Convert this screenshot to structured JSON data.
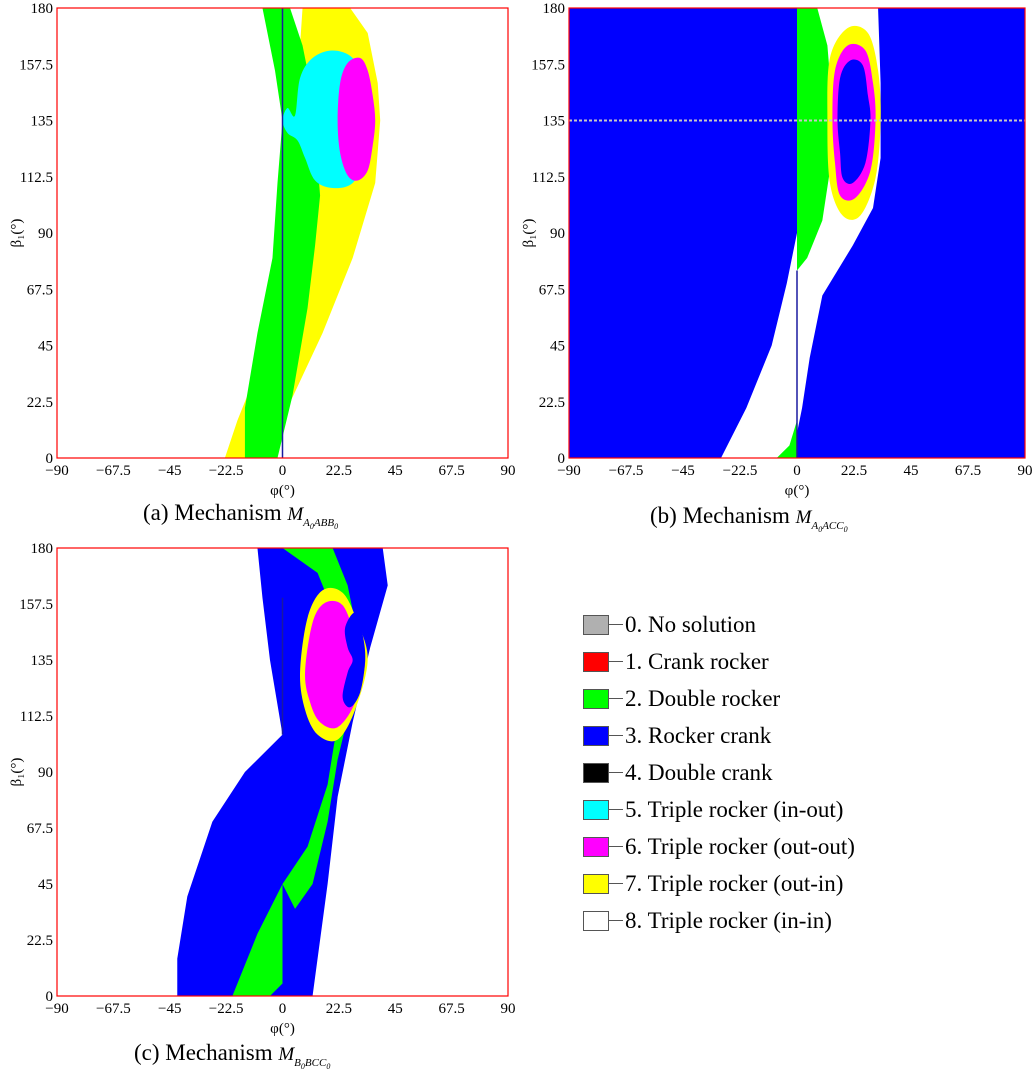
{
  "colors": {
    "no_solution": "#b0b0b0",
    "crank_rocker": "#ff0000",
    "double_rocker": "#00ff00",
    "rocker_crank": "#0000ff",
    "double_crank": "#000000",
    "triple_in_out": "#00ffff",
    "triple_out_out": "#ff00ff",
    "triple_out_in": "#ffff00",
    "triple_in_in": "#ffffff",
    "frame": "#ff0000",
    "center_line": "#1a1aa0"
  },
  "legend": [
    {
      "label": "0. No solution",
      "color": "#b0b0b0"
    },
    {
      "label": "1. Crank rocker",
      "color": "#ff0000"
    },
    {
      "label": "2. Double rocker",
      "color": "#00ff00"
    },
    {
      "label": "3. Rocker crank",
      "color": "#0000ff"
    },
    {
      "label": "4. Double crank",
      "color": "#000000"
    },
    {
      "label": "5. Triple rocker (in-out)",
      "color": "#00ffff"
    },
    {
      "label": "6. Triple rocker (out-out)",
      "color": "#ff00ff"
    },
    {
      "label": "7. Triple rocker (out-in)",
      "color": "#ffff00"
    },
    {
      "label": "8. Triple rocker (in-in)",
      "color": "#ffffff"
    }
  ],
  "chart_data": [
    {
      "type": "heatmap",
      "id": "a",
      "caption_prefix": "(a) Mechanism",
      "caption_symbol": "M",
      "caption_sub_parts": [
        "A",
        "0",
        "ABB",
        "0"
      ],
      "xlabel": "φ(°)",
      "ylabel": "β₁(°)",
      "xlim": [
        -90,
        90
      ],
      "ylim": [
        0,
        180
      ],
      "xticks": [
        "−90",
        "−67.5",
        "−45",
        "−22.5",
        "0",
        "22.5",
        "45",
        "67.5",
        "90"
      ],
      "yticks": [
        "0",
        "22.5",
        "45",
        "67.5",
        "90",
        "112.5",
        "135",
        "157.5",
        "180"
      ],
      "background_region": "triple_in_in",
      "regions": [
        {
          "class": "triple_out_in",
          "polygon": [
            [
              8,
              180
            ],
            [
              27,
              180
            ],
            [
              34,
              170
            ],
            [
              38,
              150
            ],
            [
              39,
              135
            ],
            [
              37,
              110
            ],
            [
              28,
              80
            ],
            [
              16,
              50
            ],
            [
              2,
              20
            ],
            [
              -12,
              0
            ],
            [
              -23,
              0
            ],
            [
              -18,
              15
            ],
            [
              -8,
              40
            ],
            [
              5,
              75
            ],
            [
              10,
              100
            ],
            [
              8,
              120
            ],
            [
              6,
              150
            ]
          ]
        },
        {
          "class": "double_rocker",
          "polygon": [
            [
              -8,
              180
            ],
            [
              3,
              180
            ],
            [
              8,
              165
            ],
            [
              12,
              145
            ],
            [
              13,
              130
            ],
            [
              15,
              105
            ],
            [
              13,
              85
            ],
            [
              10,
              60
            ],
            [
              4,
              25
            ],
            [
              -2,
              0
            ],
            [
              -15,
              0
            ],
            [
              -15,
              20
            ],
            [
              -10,
              50
            ],
            [
              -4,
              80
            ],
            [
              -2,
              110
            ],
            [
              0,
              135
            ],
            [
              -3,
              155
            ]
          ]
        },
        {
          "class": "triple_in_out",
          "points": [
            [
              5,
              137
            ],
            [
              7,
              152
            ],
            [
              12,
              160
            ],
            [
              20,
              163
            ],
            [
              28,
              160
            ],
            [
              33,
              150
            ],
            [
              35,
              135
            ],
            [
              33,
              120
            ],
            [
              28,
              110
            ],
            [
              20,
              108
            ],
            [
              13,
              111
            ],
            [
              9,
              120
            ],
            [
              6,
              127
            ],
            [
              2,
              130
            ],
            [
              0,
              135
            ],
            [
              2,
              140
            ]
          ]
        },
        {
          "class": "triple_out_out",
          "points": [
            [
              22,
              135
            ],
            [
              23,
              150
            ],
            [
              26,
              158
            ],
            [
              31,
              160
            ],
            [
              34,
              155
            ],
            [
              36,
              145
            ],
            [
              37,
              135
            ],
            [
              36,
              125
            ],
            [
              34,
              115
            ],
            [
              30,
              111
            ],
            [
              26,
              113
            ],
            [
              23,
              122
            ]
          ]
        }
      ],
      "center_line_x": 0
    },
    {
      "type": "heatmap",
      "id": "b",
      "caption_prefix": "(b) Mechanism",
      "caption_symbol": "M",
      "caption_sub_parts": [
        "A",
        "0",
        "ACC",
        "0"
      ],
      "xlabel": "φ(°)",
      "ylabel": "β₁(°)",
      "xlim": [
        -90,
        90
      ],
      "ylim": [
        0,
        180
      ],
      "xticks": [
        "−90",
        "−67.5",
        "−45",
        "−22.5",
        "0",
        "22.5",
        "45",
        "67.5",
        "90"
      ],
      "yticks": [
        "0",
        "22.5",
        "45",
        "67.5",
        "90",
        "112.5",
        "135",
        "157.5",
        "180"
      ],
      "background_region": "rocker_crank",
      "regions": [
        {
          "class": "triple_in_in",
          "polygon": [
            [
              0,
              180
            ],
            [
              32,
              180
            ],
            [
              33,
              150
            ],
            [
              33,
              120
            ],
            [
              30,
              100
            ],
            [
              22,
              85
            ],
            [
              10,
              65
            ],
            [
              5,
              40
            ],
            [
              2,
              20
            ],
            [
              -2,
              0
            ],
            [
              -30,
              0
            ],
            [
              -20,
              20
            ],
            [
              -10,
              45
            ],
            [
              -4,
              70
            ],
            [
              0,
              90
            ]
          ]
        },
        {
          "class": "double_rocker",
          "polygon": [
            [
              0,
              180
            ],
            [
              8,
              180
            ],
            [
              12,
              165
            ],
            [
              14,
              140
            ],
            [
              13,
              115
            ],
            [
              10,
              95
            ],
            [
              4,
              80
            ],
            [
              0,
              75
            ]
          ]
        },
        {
          "class": "double_rocker",
          "polygon": [
            [
              -8,
              0
            ],
            [
              0,
              0
            ],
            [
              0,
              15
            ],
            [
              -3,
              5
            ]
          ]
        },
        {
          "class": "triple_out_in",
          "points": [
            [
              12,
              135
            ],
            [
              13,
              160
            ],
            [
              20,
              172
            ],
            [
              28,
              170
            ],
            [
              32,
              155
            ],
            [
              33,
              135
            ],
            [
              31,
              112
            ],
            [
              25,
              97
            ],
            [
              18,
              97
            ],
            [
              13,
              110
            ]
          ]
        },
        {
          "class": "triple_out_out",
          "points": [
            [
              14,
              135
            ],
            [
              15,
              155
            ],
            [
              20,
              165
            ],
            [
              27,
              163
            ],
            [
              30,
              150
            ],
            [
              31,
              135
            ],
            [
              29,
              115
            ],
            [
              23,
              104
            ],
            [
              17,
              105
            ],
            [
              15,
              118
            ]
          ]
        },
        {
          "class": "rocker_crank",
          "points": [
            [
              16,
              135
            ],
            [
              17,
              152
            ],
            [
              21,
              159
            ],
            [
              26,
              157
            ],
            [
              28,
              145
            ],
            [
              29,
              135
            ],
            [
              27,
              118
            ],
            [
              22,
              110
            ],
            [
              18,
              112
            ],
            [
              17,
              122
            ]
          ]
        }
      ],
      "noise_line_y": 135,
      "center_line_x": 0,
      "center_line_range": [
        0,
        75
      ]
    },
    {
      "type": "heatmap",
      "id": "c",
      "caption_prefix": "(c) Mechanism",
      "caption_symbol": "M",
      "caption_sub_parts": [
        "B",
        "0",
        "BCC",
        "0"
      ],
      "xlabel": "φ(°)",
      "ylabel": "β₁(°)",
      "xlim": [
        -90,
        90
      ],
      "ylim": [
        0,
        180
      ],
      "xticks": [
        "−90",
        "−67.5",
        "−45",
        "−22.5",
        "0",
        "22.5",
        "45",
        "67.5",
        "90"
      ],
      "yticks": [
        "0",
        "22.5",
        "45",
        "67.5",
        "90",
        "112.5",
        "135",
        "157.5",
        "180"
      ],
      "background_region": "triple_in_in",
      "regions": [
        {
          "class": "rocker_crank",
          "polygon": [
            [
              -10,
              180
            ],
            [
              40,
              180
            ],
            [
              42,
              165
            ],
            [
              35,
              140
            ],
            [
              28,
              110
            ],
            [
              22,
              80
            ],
            [
              18,
              45
            ],
            [
              14,
              15
            ],
            [
              12,
              0
            ],
            [
              -42,
              0
            ],
            [
              -42,
              15
            ],
            [
              -38,
              40
            ],
            [
              -28,
              70
            ],
            [
              -15,
              90
            ],
            [
              0,
              105
            ],
            [
              -5,
              135
            ],
            [
              -8,
              160
            ]
          ]
        },
        {
          "class": "double_rocker",
          "polygon": [
            [
              0,
              180
            ],
            [
              20,
              180
            ],
            [
              26,
              165
            ],
            [
              30,
              145
            ],
            [
              32,
              135
            ],
            [
              28,
              120
            ],
            [
              22,
              95
            ],
            [
              18,
              70
            ],
            [
              12,
              45
            ],
            [
              5,
              35
            ],
            [
              0,
              45
            ],
            [
              -10,
              25
            ],
            [
              -20,
              0
            ],
            [
              -5,
              0
            ],
            [
              0,
              5
            ],
            [
              0,
              45
            ],
            [
              10,
              60
            ],
            [
              18,
              85
            ],
            [
              22,
              110
            ],
            [
              27,
              135
            ],
            [
              20,
              155
            ],
            [
              14,
              170
            ]
          ]
        },
        {
          "class": "triple_out_in",
          "points": [
            [
              7,
              130
            ],
            [
              10,
              152
            ],
            [
              16,
              163
            ],
            [
              24,
              162
            ],
            [
              30,
              150
            ],
            [
              34,
              135
            ],
            [
              29,
              115
            ],
            [
              22,
              103
            ],
            [
              14,
              105
            ],
            [
              9,
              115
            ]
          ]
        },
        {
          "class": "triple_out_out",
          "points": [
            [
              9,
              130
            ],
            [
              12,
              150
            ],
            [
              17,
              158
            ],
            [
              24,
              157
            ],
            [
              29,
              145
            ],
            [
              33,
              135
            ],
            [
              29,
              118
            ],
            [
              22,
              108
            ],
            [
              15,
              110
            ],
            [
              11,
              118
            ]
          ]
        },
        {
          "class": "rocker_crank",
          "points": [
            [
              25,
              148
            ],
            [
              29,
              154
            ],
            [
              32,
              145
            ],
            [
              33,
              135
            ],
            [
              31,
              122
            ],
            [
              27,
              116
            ],
            [
              24,
              120
            ],
            [
              26,
              130
            ],
            [
              28,
              135
            ],
            [
              26,
              140
            ]
          ]
        }
      ],
      "center_line_x": 0,
      "center_line_range": [
        105,
        160
      ]
    }
  ]
}
